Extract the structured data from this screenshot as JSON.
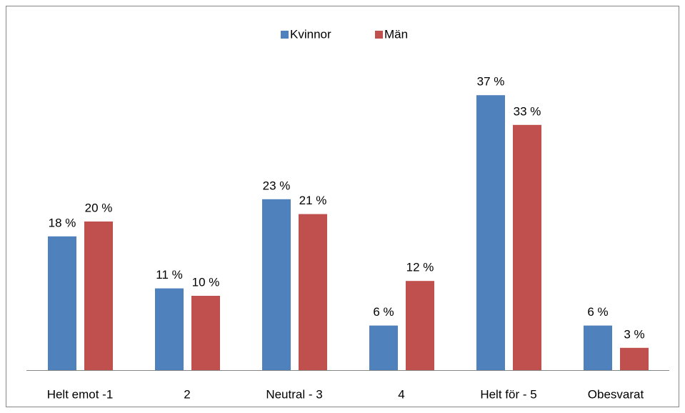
{
  "chart_data": {
    "type": "bar",
    "categories": [
      "Helt emot -1",
      "2",
      "Neutral - 3",
      "4",
      "Helt för - 5",
      "Obesvarat"
    ],
    "series": [
      {
        "name": "Kvinnor",
        "color": "#4f81bd",
        "values": [
          18,
          11,
          23,
          6,
          37,
          6
        ],
        "value_labels": [
          "18 %",
          "11 %",
          "23 %",
          "6 %",
          "37 %",
          "6 %"
        ]
      },
      {
        "name": "Män",
        "color": "#c0504d",
        "values": [
          20,
          10,
          21,
          12,
          33,
          3
        ],
        "value_labels": [
          "20 %",
          "10 %",
          "21 %",
          "12 %",
          "33 %",
          "3 %"
        ]
      }
    ],
    "legend": "top"
  }
}
